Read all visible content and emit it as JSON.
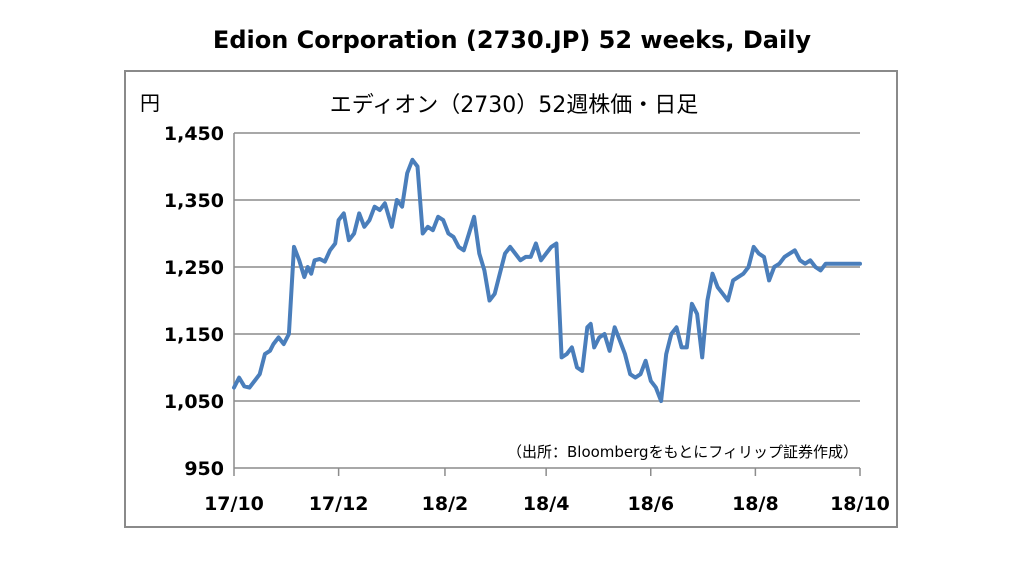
{
  "header": {
    "title": "Edion Corporation (2730.JP) 52 weeks, Daily"
  },
  "chart_data": {
    "type": "line",
    "title": "エディオン（2730）52週株価・日足",
    "ylabel": "円",
    "source": "（出所：Bloombergをもとにフィリップ証券作成）",
    "ylim": [
      950,
      1450
    ],
    "yticks": [
      950,
      1050,
      1150,
      1250,
      1350,
      1450
    ],
    "ytick_labels": [
      "950",
      "1,050",
      "1,150",
      "1,250",
      "1,350",
      "1,450"
    ],
    "xlim": [
      "2017-10-01",
      "2018-10-01"
    ],
    "xticks": [
      "2017-10-01",
      "2017-12-01",
      "2018-02-01",
      "2018-04-01",
      "2018-06-01",
      "2018-08-01",
      "2018-10-01"
    ],
    "xtick_labels": [
      "17/10",
      "17/12",
      "18/2",
      "18/4",
      "18/6",
      "18/8",
      "18/10"
    ],
    "grid": true,
    "line_color": "#4a7ebb",
    "series": [
      {
        "x": [
          "2017-10-01",
          "2017-10-04",
          "2017-10-07",
          "2017-10-10",
          "2017-10-13",
          "2017-10-16",
          "2017-10-19",
          "2017-10-22",
          "2017-10-24",
          "2017-10-27",
          "2017-10-30",
          "2017-11-02",
          "2017-11-05",
          "2017-11-08",
          "2017-11-11",
          "2017-11-13",
          "2017-11-15",
          "2017-11-17",
          "2017-11-20",
          "2017-11-23",
          "2017-11-26",
          "2017-11-29",
          "2017-12-01",
          "2017-12-04",
          "2017-12-07",
          "2017-12-10",
          "2017-12-13",
          "2017-12-16",
          "2017-12-19",
          "2017-12-22",
          "2017-12-25",
          "2017-12-28",
          "2018-01-01",
          "2018-01-04",
          "2018-01-07",
          "2018-01-10",
          "2018-01-13",
          "2018-01-16",
          "2018-01-19",
          "2018-01-22",
          "2018-01-25",
          "2018-01-28",
          "2018-01-31",
          "2018-02-03",
          "2018-02-06",
          "2018-02-09",
          "2018-02-12",
          "2018-02-15",
          "2018-02-18",
          "2018-02-21",
          "2018-02-24",
          "2018-02-27",
          "2018-03-02",
          "2018-03-05",
          "2018-03-08",
          "2018-03-11",
          "2018-03-14",
          "2018-03-17",
          "2018-03-20",
          "2018-03-23",
          "2018-03-26",
          "2018-03-29",
          "2018-04-01",
          "2018-04-04",
          "2018-04-07",
          "2018-04-10",
          "2018-04-13",
          "2018-04-16",
          "2018-04-19",
          "2018-04-22",
          "2018-04-25",
          "2018-04-27",
          "2018-04-29",
          "2018-05-02",
          "2018-05-05",
          "2018-05-08",
          "2018-05-11",
          "2018-05-14",
          "2018-05-17",
          "2018-05-20",
          "2018-05-23",
          "2018-05-26",
          "2018-05-29",
          "2018-06-01",
          "2018-06-04",
          "2018-06-07",
          "2018-06-10",
          "2018-06-13",
          "2018-06-16",
          "2018-06-19",
          "2018-06-22",
          "2018-06-25",
          "2018-06-28",
          "2018-07-01",
          "2018-07-04",
          "2018-07-07",
          "2018-07-10",
          "2018-07-13",
          "2018-07-16",
          "2018-07-19",
          "2018-07-22",
          "2018-07-25",
          "2018-07-28",
          "2018-07-31",
          "2018-08-03",
          "2018-08-06",
          "2018-08-09",
          "2018-08-12",
          "2018-08-15",
          "2018-08-18",
          "2018-08-21",
          "2018-08-24",
          "2018-08-27",
          "2018-08-30",
          "2018-09-02",
          "2018-09-05",
          "2018-09-08",
          "2018-09-11",
          "2018-09-14",
          "2018-09-17",
          "2018-09-20",
          "2018-09-23",
          "2018-09-26",
          "2018-09-29",
          "2018-10-01"
        ],
        "values": [
          1070,
          1085,
          1072,
          1070,
          1080,
          1090,
          1120,
          1125,
          1135,
          1145,
          1135,
          1150,
          1280,
          1260,
          1235,
          1250,
          1240,
          1260,
          1262,
          1258,
          1275,
          1285,
          1320,
          1330,
          1290,
          1300,
          1330,
          1310,
          1320,
          1340,
          1335,
          1345,
          1310,
          1350,
          1340,
          1390,
          1410,
          1400,
          1300,
          1310,
          1305,
          1325,
          1320,
          1300,
          1295,
          1280,
          1275,
          1300,
          1325,
          1270,
          1245,
          1200,
          1210,
          1240,
          1270,
          1280,
          1270,
          1260,
          1265,
          1265,
          1285,
          1260,
          1270,
          1280,
          1285,
          1115,
          1120,
          1130,
          1100,
          1095,
          1160,
          1165,
          1130,
          1145,
          1150,
          1125,
          1160,
          1140,
          1120,
          1090,
          1085,
          1090,
          1110,
          1080,
          1070,
          1050,
          1120,
          1150,
          1160,
          1130,
          1130,
          1195,
          1180,
          1115,
          1200,
          1240,
          1220,
          1210,
          1200,
          1230,
          1235,
          1240,
          1250,
          1280,
          1270,
          1265,
          1230,
          1250,
          1255,
          1265,
          1270,
          1275,
          1260,
          1255,
          1260,
          1250,
          1245,
          1255,
          1255,
          1255,
          1255,
          1255,
          1255,
          1255,
          1255
        ]
      }
    ]
  }
}
